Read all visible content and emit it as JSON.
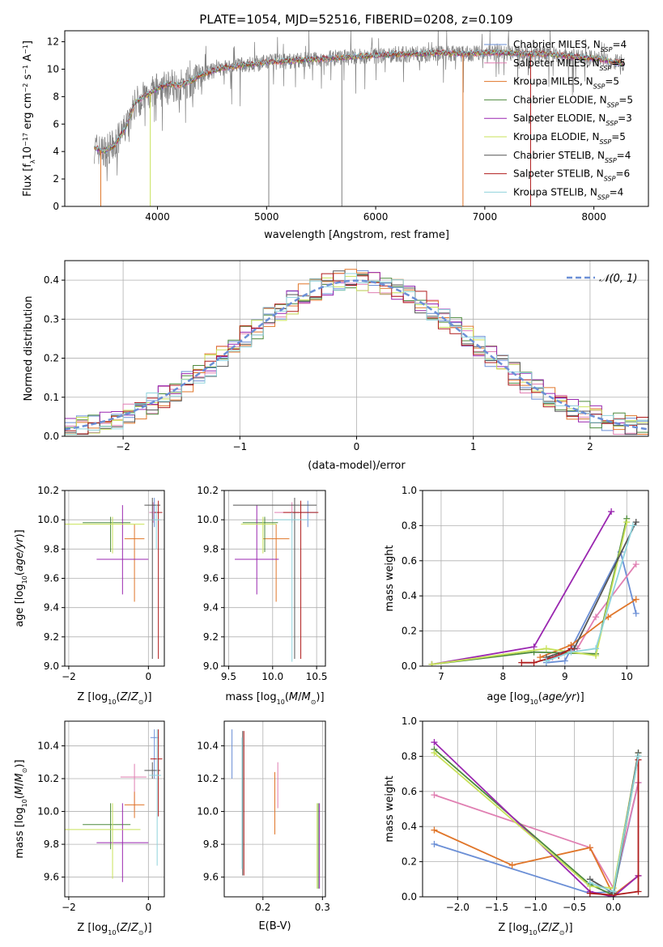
{
  "figure_title": "PLATE=1054, MJD=52516, FIBERID=0208, z=0.109",
  "colors": {
    "blue": "#6b8fd6",
    "orange": "#e0762a",
    "green": "#4d8a3d",
    "purple": "#9a27b0",
    "lime": "#c8e25a",
    "gray": "#555555",
    "red": "#b01c1c",
    "cyan": "#8fd3dc",
    "pink": "#e07fb2",
    "darkpurple": "#7a2aa0",
    "spectrum": "#808080"
  },
  "chart_data": [
    {
      "type": "line",
      "panel": "spectrum",
      "xlabel": "wavelength [Angstrom, rest frame]",
      "ylabel": "Flux [f_λ 10^-17 erg cm^-2 s^-1 A^-1]",
      "xlim": [
        3150,
        8500
      ],
      "ylim": [
        0,
        12.8
      ],
      "xticks": [
        4000,
        5000,
        6000,
        7000,
        8000
      ],
      "yticks": [
        0,
        2,
        4,
        6,
        8,
        10,
        12
      ],
      "legend_position": "upper right",
      "series": [
        {
          "name": "Chabrier MILES, N_SSP=4",
          "color": "#6b8fd6"
        },
        {
          "name": "Salpeter MILES, N_SSP=5",
          "color": "#e07fb2"
        },
        {
          "name": "Kroupa MILES, N_SSP=5",
          "color": "#e0762a"
        },
        {
          "name": "Chabrier ELODIE, N_SSP=5",
          "color": "#4d8a3d"
        },
        {
          "name": "Salpeter ELODIE, N_SSP=3",
          "color": "#9a27b0"
        },
        {
          "name": "Kroupa ELODIE, N_SSP=5",
          "color": "#c8e25a"
        },
        {
          "name": "Chabrier STELIB, N_SSP=4",
          "color": "#555555"
        },
        {
          "name": "Salpeter STELIB, N_SSP=6",
          "color": "#b01c1c"
        },
        {
          "name": "Kroupa STELIB, N_SSP=4",
          "color": "#8fd3dc"
        }
      ],
      "continuum": {
        "x": [
          3420,
          3500,
          3600,
          3700,
          3800,
          3900,
          4000,
          4100,
          4200,
          4300,
          4400,
          4600,
          4800,
          5000,
          5200,
          5400,
          5600,
          5800,
          6000,
          6200,
          6400,
          6600,
          6800,
          7000,
          7200,
          7400,
          7600,
          7800,
          8000,
          8200,
          8280
        ],
        "y": [
          4.3,
          4.0,
          4.4,
          5.6,
          7.6,
          8.1,
          8.6,
          8.9,
          8.8,
          9.1,
          9.6,
          10.1,
          10.3,
          10.5,
          10.6,
          10.7,
          10.8,
          10.9,
          11.0,
          11.1,
          11.1,
          11.2,
          11.1,
          11.2,
          11.2,
          11.1,
          11.1,
          10.9,
          10.8,
          10.5,
          10.4
        ]
      },
      "absorption_lines": [
        {
          "x": 3934,
          "y": 0.0,
          "color": "#c8e25a"
        },
        {
          "x": 5020,
          "y": 0.0,
          "color": "#808080"
        },
        {
          "x": 5690,
          "y": 0.0,
          "color": "#808080"
        },
        {
          "x": 6800,
          "y": 0.0,
          "color": "#e0762a"
        },
        {
          "x": 7420,
          "y": 0.0,
          "color": "#b01c1c"
        },
        {
          "x": 3480,
          "y": 0.0,
          "color": "#e0762a"
        }
      ]
    },
    {
      "type": "histogram",
      "panel": "residuals",
      "xlabel": "(data-model)/error",
      "ylabel": "Normed distribution",
      "xlim": [
        -2.5,
        2.5
      ],
      "ylim": [
        0,
        0.45
      ],
      "xticks": [
        -2,
        -1,
        0,
        1,
        2
      ],
      "yticks": [
        0.0,
        0.1,
        0.2,
        0.3,
        0.4
      ],
      "grid": true,
      "legend": {
        "label": "𝒩(0, 1)",
        "position": "upper right",
        "color": "#6b8fd6",
        "style": "dashed"
      },
      "bin_width": 0.1
    },
    {
      "type": "errorbar",
      "panel": "Z-age",
      "xlabel": "Z [log10(Z/Z⊙)]",
      "ylabel": "age [log10(age/yr)]",
      "xlim": [
        -2.1,
        0.4
      ],
      "ylim": [
        9.0,
        10.2
      ],
      "xticks": [
        -2,
        0
      ],
      "yticks": [
        9.0,
        9.2,
        9.4,
        9.6,
        9.8,
        10.0,
        10.2
      ],
      "grid": true,
      "points": [
        {
          "color": "#6b8fd6",
          "x": 0.15,
          "xerr": [
            0.1,
            0.1
          ],
          "y": 10.05,
          "yerr": [
            0.1,
            0.1
          ]
        },
        {
          "color": "#e07fb2",
          "x": 0.12,
          "xerr": [
            0.1,
            0.1
          ],
          "y": 10.05,
          "yerr": [
            0.07,
            0.07
          ]
        },
        {
          "color": "#e0762a",
          "x": -0.35,
          "xerr": [
            0.25,
            0.25
          ],
          "y": 9.87,
          "yerr": [
            0.43,
            0.1
          ]
        },
        {
          "color": "#4d8a3d",
          "x": -0.95,
          "xerr": [
            0.7,
            0.5
          ],
          "y": 9.98,
          "yerr": [
            0.2,
            0.04
          ]
        },
        {
          "color": "#9a27b0",
          "x": -0.65,
          "xerr": [
            0.65,
            0.65
          ],
          "y": 9.73,
          "yerr": [
            0.24,
            0.37
          ]
        },
        {
          "color": "#c8e25a",
          "x": -0.9,
          "xerr": [
            1.2,
            0.8
          ],
          "y": 9.97,
          "yerr": [
            0.2,
            0.05
          ]
        },
        {
          "color": "#555555",
          "x": 0.1,
          "xerr": [
            0.2,
            0.2
          ],
          "y": 10.1,
          "yerr": [
            1.05,
            0.05
          ]
        },
        {
          "color": "#b01c1c",
          "x": 0.25,
          "xerr": [
            0.1,
            0.1
          ],
          "y": 10.05,
          "yerr": [
            1.0,
            0.08
          ]
        },
        {
          "color": "#8fd3dc",
          "x": 0.2,
          "xerr": [
            0.1,
            0.1
          ],
          "y": 10.0,
          "yerr": [
            0.2,
            0.1
          ]
        }
      ]
    },
    {
      "type": "errorbar",
      "panel": "mass-age",
      "xlabel": "mass [log10(M/M⊙)]",
      "ylabel": "",
      "xlim": [
        9.45,
        10.6
      ],
      "ylim": [
        9.0,
        10.2
      ],
      "xticks": [
        9.5,
        10.0,
        10.5
      ],
      "yticks": [
        9.0,
        9.2,
        9.4,
        9.6,
        9.8,
        10.0,
        10.2
      ],
      "grid": true,
      "points": [
        {
          "color": "#6b8fd6",
          "x": 10.4,
          "xerr": [
            0.2,
            0.1
          ],
          "y": 10.05,
          "yerr": [
            0.1,
            0.08
          ]
        },
        {
          "color": "#e07fb2",
          "x": 10.22,
          "xerr": [
            0.2,
            0.1
          ],
          "y": 10.05,
          "yerr": [
            0.07,
            0.07
          ]
        },
        {
          "color": "#e0762a",
          "x": 10.04,
          "xerr": [
            0.15,
            0.15
          ],
          "y": 9.87,
          "yerr": [
            0.43,
            0.1
          ]
        },
        {
          "color": "#4d8a3d",
          "x": 9.91,
          "xerr": [
            0.25,
            0.15
          ],
          "y": 9.98,
          "yerr": [
            0.2,
            0.04
          ]
        },
        {
          "color": "#9a27b0",
          "x": 9.82,
          "xerr": [
            0.25,
            0.25
          ],
          "y": 9.73,
          "yerr": [
            0.24,
            0.37
          ]
        },
        {
          "color": "#c8e25a",
          "x": 9.89,
          "xerr": [
            0.25,
            0.15
          ],
          "y": 9.97,
          "yerr": [
            0.2,
            0.05
          ]
        },
        {
          "color": "#555555",
          "x": 10.25,
          "xerr": [
            0.7,
            0.25
          ],
          "y": 10.1,
          "yerr": [
            1.05,
            0.05
          ]
        },
        {
          "color": "#b01c1c",
          "x": 10.32,
          "xerr": [
            0.2,
            0.2
          ],
          "y": 10.05,
          "yerr": [
            1.0,
            0.08
          ]
        },
        {
          "color": "#8fd3dc",
          "x": 10.22,
          "xerr": [
            0.2,
            0.2
          ],
          "y": 10.0,
          "yerr": [
            0.97,
            0.05
          ]
        }
      ]
    },
    {
      "type": "line",
      "panel": "age-weight",
      "xlabel": "age  [log10(age/yr)]",
      "ylabel": "mass weight",
      "xlim": [
        6.7,
        10.35
      ],
      "ylim": [
        0,
        1.0
      ],
      "xticks": [
        7,
        8,
        9,
        10
      ],
      "yticks": [
        0.0,
        0.2,
        0.4,
        0.6,
        0.8,
        1.0
      ],
      "grid": true,
      "series": [
        {
          "color": "#6b8fd6",
          "x": [
            8.7,
            9.0,
            9.9,
            10.15
          ],
          "y": [
            0.02,
            0.03,
            0.65,
            0.3
          ]
        },
        {
          "color": "#e07fb2",
          "x": [
            8.8,
            9.2,
            9.5,
            10.15
          ],
          "y": [
            0.05,
            0.1,
            0.28,
            0.58
          ]
        },
        {
          "color": "#e0762a",
          "x": [
            8.6,
            9.1,
            9.7,
            10.15
          ],
          "y": [
            0.05,
            0.12,
            0.28,
            0.38
          ]
        },
        {
          "color": "#4d8a3d",
          "x": [
            6.85,
            8.5,
            9.5,
            10.0
          ],
          "y": [
            0.01,
            0.08,
            0.07,
            0.84
          ]
        },
        {
          "color": "#9a27b0",
          "x": [
            6.85,
            8.5,
            9.75
          ],
          "y": [
            0.01,
            0.11,
            0.88
          ]
        },
        {
          "color": "#c8e25a",
          "x": [
            6.85,
            8.7,
            9.5,
            10.0
          ],
          "y": [
            0.01,
            0.1,
            0.06,
            0.82
          ]
        },
        {
          "color": "#555555",
          "x": [
            8.7,
            9.15,
            10.15
          ],
          "y": [
            0.05,
            0.1,
            0.82
          ]
        },
        {
          "color": "#b01c1c",
          "x": [
            8.3,
            8.5,
            8.9,
            9.1
          ],
          "y": [
            0.02,
            0.02,
            0.06,
            0.1
          ]
        },
        {
          "color": "#8fd3dc",
          "x": [
            8.7,
            9.1,
            9.5,
            10.1
          ],
          "y": [
            0.03,
            0.08,
            0.1,
            0.8
          ]
        }
      ]
    },
    {
      "type": "errorbar",
      "panel": "Z-mass",
      "xlabel": "Z [log10(Z/Z⊙)]",
      "ylabel": "mass [log10(M/M⊙)]",
      "xlim": [
        -2.1,
        0.4
      ],
      "ylim": [
        9.48,
        10.55
      ],
      "xticks": [
        -2,
        0
      ],
      "yticks": [
        9.6,
        9.8,
        10.0,
        10.2,
        10.4
      ],
      "grid": true,
      "points": [
        {
          "color": "#6b8fd6",
          "x": 0.15,
          "xerr": [
            0.1,
            0.1
          ],
          "y": 10.45,
          "yerr": [
            0.25,
            0.05
          ]
        },
        {
          "color": "#e07fb2",
          "x": -0.35,
          "xerr": [
            0.35,
            0.3
          ],
          "y": 10.21,
          "yerr": [
            0.2,
            0.08
          ]
        },
        {
          "color": "#e0762a",
          "x": -0.35,
          "xerr": [
            0.25,
            0.25
          ],
          "y": 10.04,
          "yerr": [
            0.08,
            0.08
          ]
        },
        {
          "color": "#4d8a3d",
          "x": -0.95,
          "xerr": [
            0.7,
            0.5
          ],
          "y": 9.92,
          "yerr": [
            0.15,
            0.13
          ]
        },
        {
          "color": "#9a27b0",
          "x": -0.65,
          "xerr": [
            0.65,
            0.65
          ],
          "y": 9.81,
          "yerr": [
            0.24,
            0.24
          ]
        },
        {
          "color": "#c8e25a",
          "x": -0.9,
          "xerr": [
            1.2,
            0.7
          ],
          "y": 9.89,
          "yerr": [
            0.3,
            0.16
          ]
        },
        {
          "color": "#555555",
          "x": 0.1,
          "xerr": [
            0.2,
            0.2
          ],
          "y": 10.25,
          "yerr": [
            0.05,
            0.05
          ]
        },
        {
          "color": "#b01c1c",
          "x": 0.25,
          "xerr": [
            0.2,
            0.1
          ],
          "y": 10.32,
          "yerr": [
            0.35,
            0.18
          ]
        },
        {
          "color": "#8fd3dc",
          "x": 0.22,
          "xerr": [
            0.2,
            0.1
          ],
          "y": 10.22,
          "yerr": [
            0.55,
            0.28
          ]
        }
      ]
    },
    {
      "type": "errorbar",
      "panel": "ebv-mass",
      "xlabel": "E(B-V)",
      "ylabel": "",
      "xlim": [
        0.135,
        0.305
      ],
      "ylim": [
        9.48,
        10.55
      ],
      "xticks": [
        0.2,
        0.3
      ],
      "yticks": [
        9.6,
        9.8,
        10.0,
        10.2,
        10.4
      ],
      "grid": true,
      "points": [
        {
          "color": "#6b8fd6",
          "x": 0.148,
          "y": 10.35,
          "yerr": [
            0.15,
            0.15
          ]
        },
        {
          "color": "#e07fb2",
          "x": 0.225,
          "y": 10.16,
          "yerr": [
            0.14,
            0.14
          ]
        },
        {
          "color": "#e0762a",
          "x": 0.22,
          "y": 10.05,
          "yerr": [
            0.19,
            0.19
          ]
        },
        {
          "color": "#4d8a3d",
          "x": 0.293,
          "y": 9.79,
          "yerr": [
            0.26,
            0.26
          ]
        },
        {
          "color": "#9a27b0",
          "x": 0.295,
          "y": 9.79,
          "yerr": [
            0.26,
            0.26
          ]
        },
        {
          "color": "#c8e25a",
          "x": 0.291,
          "y": 9.79,
          "yerr": [
            0.26,
            0.26
          ]
        },
        {
          "color": "#555555",
          "x": 0.166,
          "y": 10.05,
          "yerr": [
            0.44,
            0.44
          ]
        },
        {
          "color": "#b01c1c",
          "x": 0.168,
          "y": 10.05,
          "yerr": [
            0.44,
            0.44
          ]
        },
        {
          "color": "#8fd3dc",
          "x": 0.165,
          "y": 10.05,
          "yerr": [
            0.4,
            0.4
          ]
        }
      ]
    },
    {
      "type": "line",
      "panel": "Z-weight",
      "xlabel": "Z [log10(Z/Z⊙)]",
      "ylabel": "mass weight",
      "xlim": [
        -2.45,
        0.45
      ],
      "ylim": [
        0,
        1.0
      ],
      "xticks": [
        -2.0,
        -1.5,
        -1.0,
        -0.5,
        0.0
      ],
      "yticks": [
        0.0,
        0.2,
        0.4,
        0.6,
        0.8,
        1.0
      ],
      "grid": true,
      "series": [
        {
          "color": "#6b8fd6",
          "x": [
            -2.3,
            -0.3,
            0.0,
            0.32
          ],
          "y": [
            0.3,
            0.02,
            0.03,
            0.65
          ]
        },
        {
          "color": "#e07fb2",
          "x": [
            -2.3,
            -0.3,
            0.0,
            0.32
          ],
          "y": [
            0.58,
            0.28,
            0.05,
            0.65
          ]
        },
        {
          "color": "#e0762a",
          "x": [
            -2.3,
            -1.3,
            -0.3,
            0.0,
            0.32
          ],
          "y": [
            0.38,
            0.18,
            0.28,
            0.01,
            0.12
          ]
        },
        {
          "color": "#4d8a3d",
          "x": [
            -2.3,
            -0.3,
            0.0,
            0.32
          ],
          "y": [
            0.84,
            0.07,
            0.01,
            0.8
          ]
        },
        {
          "color": "#9a27b0",
          "x": [
            -2.3,
            -0.3,
            0.0,
            0.32
          ],
          "y": [
            0.88,
            0.03,
            0.0,
            0.12
          ]
        },
        {
          "color": "#c8e25a",
          "x": [
            -2.3,
            -0.3,
            0.0,
            0.32
          ],
          "y": [
            0.82,
            0.06,
            0.05,
            0.82
          ]
        },
        {
          "color": "#555555",
          "x": [
            -0.3,
            0.0,
            0.32
          ],
          "y": [
            0.1,
            0.02,
            0.82
          ]
        },
        {
          "color": "#b01c1c",
          "x": [
            -0.3,
            0.0,
            0.32,
            0.32
          ],
          "y": [
            0.02,
            0.01,
            0.03,
            0.78
          ]
        },
        {
          "color": "#8fd3dc",
          "x": [
            -0.3,
            0.0,
            0.32
          ],
          "y": [
            0.08,
            0.03,
            0.8
          ]
        }
      ]
    }
  ]
}
